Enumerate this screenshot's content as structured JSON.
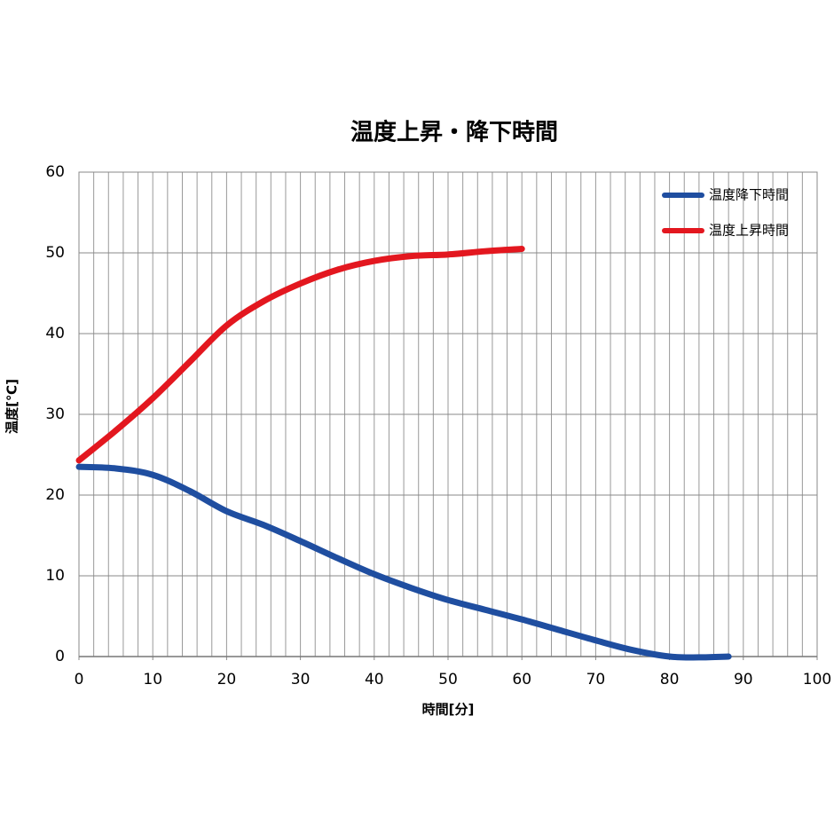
{
  "chart_data": {
    "type": "line",
    "title": "温度上昇・降下時間",
    "x_label": "時間[分]",
    "y_label": "温度[℃]",
    "xlim": [
      0,
      100
    ],
    "xticks": [
      0,
      10,
      20,
      30,
      40,
      50,
      60,
      70,
      80,
      90,
      100
    ],
    "x_minor_step": 2,
    "ylim": [
      0,
      60
    ],
    "yticks": [
      0,
      10,
      20,
      30,
      40,
      50,
      60
    ],
    "grid": true,
    "legend": "upper right",
    "series": [
      {
        "name": "温度降下時間",
        "color": "#1f4ea0",
        "x": [
          0,
          5,
          10,
          15,
          20,
          25,
          30,
          35,
          40,
          45,
          50,
          55,
          60,
          65,
          70,
          75,
          80,
          84,
          88
        ],
        "values": [
          23.5,
          23.3,
          22.5,
          20.5,
          18,
          16.3,
          14.3,
          12.2,
          10.2,
          8.5,
          7,
          5.8,
          4.6,
          3.3,
          2,
          0.8,
          0,
          -0.1,
          0
        ]
      },
      {
        "name": "温度上昇時間",
        "color": "#e3171f",
        "x": [
          0,
          5,
          10,
          15,
          20,
          25,
          30,
          35,
          40,
          45,
          50,
          55,
          60
        ],
        "values": [
          24.3,
          28,
          32,
          36.5,
          41,
          44,
          46.2,
          47.9,
          49,
          49.6,
          49.8,
          50.2,
          50.5
        ]
      }
    ]
  }
}
